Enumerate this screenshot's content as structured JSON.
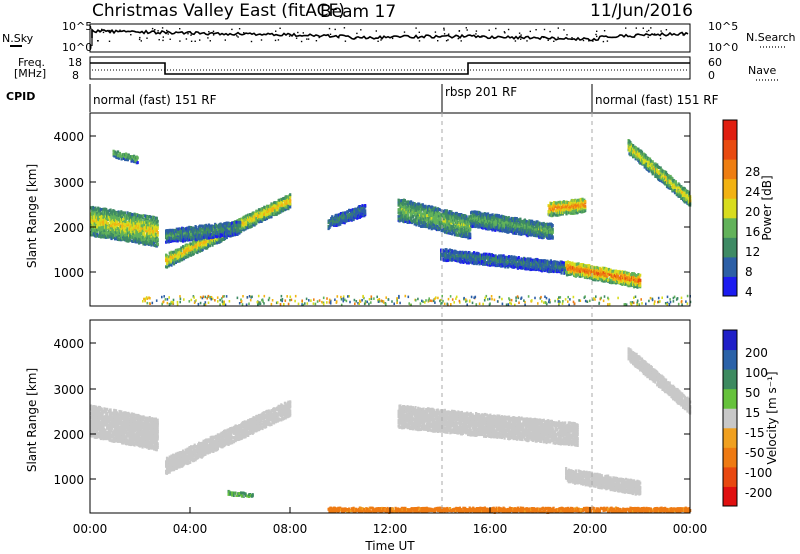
{
  "header": {
    "station": "Christmas Valley East (fitACF)",
    "beam": "Beam 17",
    "date": "11/Jun/2016"
  },
  "noise_panel": {
    "left_label": "N.Sky",
    "right_label": "N.Search",
    "left_ticks": [
      "10^5",
      "10^0"
    ],
    "right_ticks": [
      "10^5",
      "10^0"
    ]
  },
  "freq_panel": {
    "left_label_1": "Freq.",
    "left_label_2": "[MHz]",
    "right_label": "Nave",
    "left_ticks": [
      "18",
      "8"
    ],
    "right_ticks": [
      "60",
      "0"
    ]
  },
  "cpid": {
    "label": "CPID",
    "segments": [
      {
        "name": "normal (fast) 151 RF",
        "start_hour": 0,
        "end_hour": 14
      },
      {
        "name": "rbsp 201 RF",
        "start_hour": 14,
        "end_hour": 20
      },
      {
        "name": "normal (fast) 151 RF",
        "start_hour": 20,
        "end_hour": 24
      }
    ]
  },
  "axes": {
    "ylabel": "Slant Range [km]",
    "xlabel": "Time UT",
    "y_ticks": [
      "1000",
      "2000",
      "3000",
      "4000"
    ],
    "x_ticks": [
      "00:00",
      "04:00",
      "08:00",
      "12:00",
      "16:00",
      "20:00",
      "00:00"
    ]
  },
  "colorbars": {
    "power": {
      "label": "Power [dB]",
      "ticks": [
        "28",
        "24",
        "20",
        "16",
        "12",
        "8",
        "4"
      ],
      "colors": [
        "#1c1cf0",
        "#2c5fa6",
        "#3e8a64",
        "#62b25a",
        "#d8dc1e",
        "#f2b212",
        "#ee7e12",
        "#e84a10",
        "#e01e10"
      ]
    },
    "velocity": {
      "label": "Velocity [m s⁻¹]",
      "ticks": [
        "200",
        "100",
        "50",
        "15",
        "-15",
        "-50",
        "-100",
        "-200"
      ],
      "colors": [
        "#2020c8",
        "#2b62a8",
        "#3d8a60",
        "#66c23c",
        "#c8c8c8",
        "#f0a020",
        "#ee7a12",
        "#e84810",
        "#e01010"
      ]
    }
  },
  "chart_data": {
    "type": "heatmap",
    "x_range_hours": [
      0,
      24
    ],
    "y_range_km": [
      200,
      4500
    ],
    "power_patches": [
      {
        "t0": 0.0,
        "t1": 2.7,
        "r_start": 2150,
        "r_end": 1900,
        "width": 650,
        "power": 18
      },
      {
        "t0": 0.9,
        "t1": 1.9,
        "r_start": 3650,
        "r_end": 3500,
        "width": 150,
        "power": 14
      },
      {
        "t0": 3.0,
        "t1": 8.0,
        "r_start": 1250,
        "r_end": 2600,
        "width": 300,
        "power": 20
      },
      {
        "t0": 3.0,
        "t1": 6.0,
        "r_start": 1800,
        "r_end": 2000,
        "width": 300,
        "power": 10
      },
      {
        "t0": 9.5,
        "t1": 11.0,
        "r_start": 2100,
        "r_end": 2400,
        "width": 250,
        "power": 8
      },
      {
        "t0": 12.3,
        "t1": 15.2,
        "r_start": 2400,
        "r_end": 2000,
        "width": 500,
        "power": 14
      },
      {
        "t0": 15.2,
        "t1": 18.5,
        "r_start": 2200,
        "r_end": 1900,
        "width": 350,
        "power": 12
      },
      {
        "t0": 18.3,
        "t1": 19.8,
        "r_start": 2400,
        "r_end": 2500,
        "width": 300,
        "power": 24
      },
      {
        "t0": 14.0,
        "t1": 19.0,
        "r_start": 1400,
        "r_end": 1100,
        "width": 250,
        "power": 8
      },
      {
        "t0": 19.0,
        "t1": 22.0,
        "r_start": 1100,
        "r_end": 800,
        "width": 300,
        "power": 26
      },
      {
        "t0": 21.5,
        "t1": 24.0,
        "r_start": 3800,
        "r_end": 2600,
        "width": 300,
        "power": 18
      }
    ],
    "velocity_patches": [
      {
        "t0": 0.0,
        "t1": 2.7,
        "r_start": 2300,
        "r_end": 2000,
        "width": 700,
        "velocity": 0
      },
      {
        "t0": 3.0,
        "t1": 8.0,
        "r_start": 1300,
        "r_end": 2600,
        "width": 350,
        "velocity": 0
      },
      {
        "t0": 12.3,
        "t1": 19.5,
        "r_start": 2400,
        "r_end": 2000,
        "width": 500,
        "velocity": 0
      },
      {
        "t0": 19.0,
        "t1": 22.0,
        "r_start": 1100,
        "r_end": 800,
        "width": 300,
        "velocity": 0
      },
      {
        "t0": 21.5,
        "t1": 24.0,
        "r_start": 3800,
        "r_end": 2600,
        "width": 300,
        "velocity": 0
      },
      {
        "t0": 5.5,
        "t1": 6.5,
        "r_start": 700,
        "r_end": 650,
        "width": 100,
        "velocity": 30
      },
      {
        "t0": 9.5,
        "t1": 24.0,
        "r_start": 300,
        "r_end": 300,
        "width": 150,
        "velocity": -50
      }
    ]
  }
}
